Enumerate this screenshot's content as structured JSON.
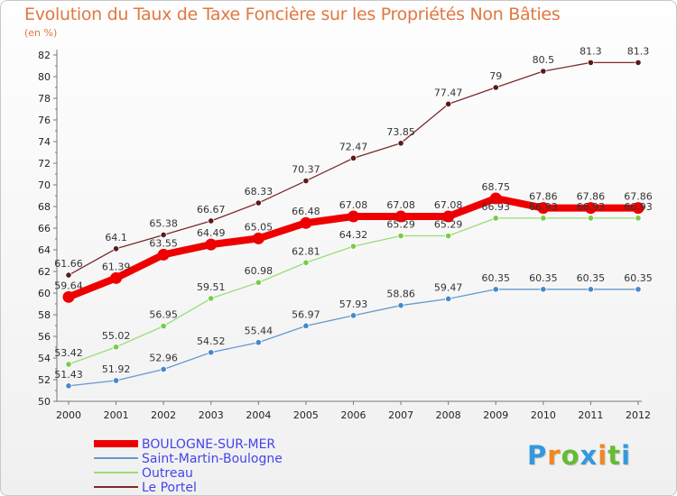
{
  "chart_data": {
    "type": "line",
    "title": "Evolution du Taux de Taxe Foncière sur les Propriétés Non Bâties",
    "unit_label": "(en %)",
    "x": [
      "2000",
      "2001",
      "2002",
      "2003",
      "2004",
      "2005",
      "2006",
      "2007",
      "2008",
      "2009",
      "2010",
      "2011",
      "2012"
    ],
    "ylim": [
      50,
      82
    ],
    "yticks": [
      50,
      52,
      54,
      56,
      58,
      60,
      62,
      64,
      66,
      68,
      70,
      72,
      74,
      76,
      78,
      80,
      82
    ],
    "grid": false,
    "legend_position": "bottom-left",
    "series": [
      {
        "name": "Le Portel",
        "color": "#7b2a2a",
        "marker_color": "#5a1a1a",
        "values": [
          61.66,
          64.1,
          65.38,
          66.67,
          68.33,
          70.37,
          72.47,
          73.85,
          77.47,
          79,
          80.5,
          81.3,
          81.3
        ],
        "labels": [
          "61.66",
          "64.1",
          "65.38",
          "66.67",
          "68.33",
          "70.37",
          "72.47",
          "73.85",
          "77.47",
          "79",
          "80.5",
          "81.3",
          "81.3"
        ]
      },
      {
        "name": "BOULOGNE-SUR-MER",
        "color": "#ee0000",
        "marker_color": "#ee0000",
        "values": [
          59.64,
          61.39,
          63.55,
          64.49,
          65.05,
          66.48,
          67.08,
          67.08,
          67.08,
          68.75,
          67.86,
          67.86,
          67.86
        ],
        "labels": [
          "59.64",
          "61.39",
          "63.55",
          "64.49",
          "65.05",
          "66.48",
          "67.08",
          "67.08",
          "67.08",
          "68.75",
          "67.86",
          "67.86",
          "67.86"
        ]
      },
      {
        "name": "Outreau",
        "color": "#99dd77",
        "marker_color": "#77cc44",
        "values": [
          53.42,
          55.02,
          56.95,
          59.51,
          60.98,
          62.81,
          64.32,
          65.29,
          65.29,
          66.93,
          66.93,
          66.93,
          66.93
        ],
        "labels": [
          "53.42",
          "55.02",
          "56.95",
          "59.51",
          "60.98",
          "62.81",
          "64.32",
          "65.29",
          "65.29",
          "66.93",
          "66.93",
          "66.93",
          "66.93"
        ]
      },
      {
        "name": "Saint-Martin-Boulogne",
        "color": "#6699cc",
        "marker_color": "#4488cc",
        "values": [
          51.43,
          51.92,
          52.96,
          54.52,
          55.44,
          56.97,
          57.93,
          58.86,
          59.47,
          60.35,
          60.35,
          60.35,
          60.35
        ],
        "labels": [
          "51.43",
          "51.92",
          "52.96",
          "54.52",
          "55.44",
          "56.97",
          "57.93",
          "58.86",
          "59.47",
          "60.35",
          "60.35",
          "60.35",
          "60.35"
        ]
      }
    ],
    "legend": [
      {
        "name": "BOULOGNE-SUR-MER",
        "color": "#ee0000",
        "text_color": "#4444ee"
      },
      {
        "name": "Saint-Martin-Boulogne",
        "color": "#6699cc",
        "text_color": "#4444ee"
      },
      {
        "name": "Outreau",
        "color": "#99dd77",
        "text_color": "#4444ee"
      },
      {
        "name": "Le Portel",
        "color": "#7b2a2a",
        "text_color": "#4444ee"
      }
    ]
  },
  "brand": {
    "letters": [
      "P",
      "r",
      "o",
      "x",
      "i",
      "t",
      "i"
    ],
    "colors": [
      "#3399dd",
      "#ee8822",
      "#66bb33",
      "#3399dd",
      "#ee8822",
      "#66bb33",
      "#3399dd"
    ]
  }
}
